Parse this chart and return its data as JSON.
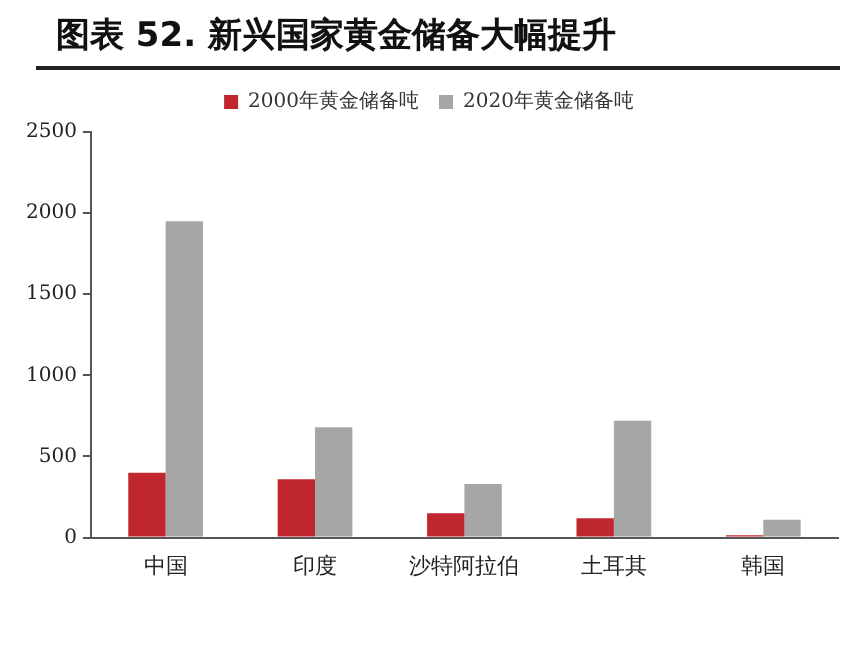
{
  "chart_data": {
    "type": "bar",
    "title": "图表 52. 新兴国家黄金储备大幅提升",
    "categories": [
      "中国",
      "印度",
      "沙特阿拉伯",
      "土耳其",
      "韩国"
    ],
    "series": [
      {
        "name": "2000年黄金储备吨",
        "color": "#c0262d",
        "values": [
          400,
          360,
          150,
          120,
          14
        ]
      },
      {
        "name": "2020年黄金储备吨",
        "color": "#a6a6a6",
        "values": [
          1950,
          680,
          330,
          720,
          110
        ]
      }
    ],
    "ylim": [
      0,
      2500
    ],
    "yticks": [
      0,
      500,
      1000,
      1500,
      2000,
      2500
    ],
    "grid": false,
    "legend": "top"
  }
}
